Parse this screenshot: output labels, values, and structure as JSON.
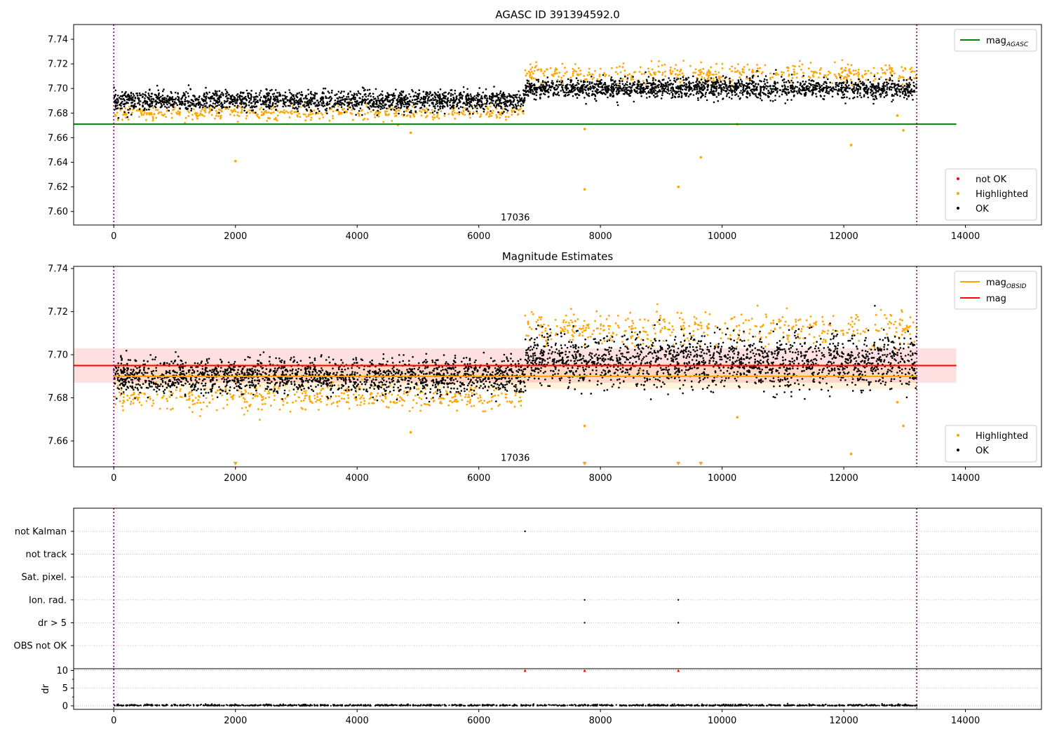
{
  "chart_data": [
    {
      "type": "scatter",
      "title": "AGASC ID 391394592.0",
      "xlim": [
        -660,
        15250
      ],
      "ylim": [
        7.589,
        7.752
      ],
      "x_ticks": [
        0,
        2000,
        4000,
        6000,
        8000,
        10000,
        12000,
        14000
      ],
      "y_ticks": [
        7.6,
        7.62,
        7.64,
        7.66,
        7.68,
        7.7,
        7.72,
        7.74
      ],
      "y_tick_decimals": 2,
      "grid": false,
      "annotation": {
        "text": "17036",
        "x": 6600,
        "y": 7.595
      },
      "vlines": [
        0,
        13200
      ],
      "colors": {
        "OK": "#000000",
        "Highlighted": "#ffa500",
        "not OK": "#ff0000",
        "mag_agasc": "#008000",
        "vline": "#800080"
      },
      "hlines": [
        {
          "label": "mag_AGASC",
          "y": 7.671,
          "x_range": [
            -660,
            13850
          ],
          "color": "#008000"
        }
      ],
      "segments": [
        {
          "x_range": [
            0,
            6760
          ],
          "ok_mean": 7.69,
          "ok_spread": 0.004,
          "hl_mean": 7.68,
          "hl_spread": 0.003
        },
        {
          "x_range": [
            6760,
            13200
          ],
          "ok_mean": 7.7,
          "ok_spread": 0.004,
          "hl_mean": 7.712,
          "hl_spread": 0.004
        }
      ],
      "highlighted_outliers": [
        {
          "x": 2000,
          "y": 7.641
        },
        {
          "x": 4880,
          "y": 7.664
        },
        {
          "x": 7740,
          "y": 7.667
        },
        {
          "x": 7740,
          "y": 7.618
        },
        {
          "x": 9280,
          "y": 7.62
        },
        {
          "x": 9650,
          "y": 7.644
        },
        {
          "x": 10250,
          "y": 7.671
        },
        {
          "x": 12120,
          "y": 7.654
        },
        {
          "x": 12980,
          "y": 7.666
        },
        {
          "x": 12880,
          "y": 7.678
        }
      ],
      "legend_markers": [
        {
          "label": "not OK",
          "color": "#ff0000"
        },
        {
          "label": "Highlighted",
          "color": "#ffa500"
        },
        {
          "label": "OK",
          "color": "#000000"
        }
      ],
      "legend_lines": [
        {
          "label": "mag",
          "sub": "AGASC",
          "color": "#008000"
        }
      ],
      "legend_lines_position": "upper right",
      "legend_markers_position": "lower right"
    },
    {
      "type": "scatter",
      "title": "Magnitude Estimates",
      "xlim": [
        -660,
        15250
      ],
      "ylim": [
        7.648,
        7.741
      ],
      "x_ticks": [
        0,
        2000,
        4000,
        6000,
        8000,
        10000,
        12000,
        14000
      ],
      "y_ticks": [
        7.66,
        7.68,
        7.7,
        7.72,
        7.74
      ],
      "y_tick_decimals": 2,
      "grid": false,
      "annotation": {
        "text": "17036",
        "x": 6600,
        "y": 7.652
      },
      "vlines": [
        0,
        13200
      ],
      "colors": {
        "OK": "#000000",
        "Highlighted": "#ffa500",
        "mag": "#ff0000",
        "mag_obsid": "#ffa500",
        "vline": "#800080"
      },
      "hlines": [
        {
          "label": "mag",
          "y": 7.695,
          "x_range": [
            -660,
            13850
          ],
          "band": [
            7.687,
            7.703
          ],
          "color": "#ff0000"
        },
        {
          "label": "mag_OBSID",
          "y": 7.69,
          "x_range": [
            0,
            13200
          ],
          "band": [
            7.684,
            7.696
          ],
          "color": "#ffa500"
        }
      ],
      "segments": [
        {
          "x_range": [
            0,
            6760
          ],
          "ok_mean": 7.69,
          "ok_spread": 0.004,
          "hl_mean": 7.68,
          "hl_spread": 0.003
        },
        {
          "x_range": [
            6760,
            13200
          ],
          "ok_mean": 7.697,
          "ok_spread": 0.006,
          "hl_mean": 7.712,
          "hl_spread": 0.004
        }
      ],
      "highlighted_outliers": [
        {
          "x": 4880,
          "y": 7.664
        },
        {
          "x": 7740,
          "y": 7.667
        },
        {
          "x": 10250,
          "y": 7.671
        },
        {
          "x": 12120,
          "y": 7.654
        },
        {
          "x": 12980,
          "y": 7.667
        },
        {
          "x": 12880,
          "y": 7.678
        }
      ],
      "offscale_markers": [
        2000,
        7740,
        9280,
        9650
      ],
      "legend_markers": [
        {
          "label": "Highlighted",
          "color": "#ffa500"
        },
        {
          "label": "OK",
          "color": "#000000"
        }
      ],
      "legend_lines": [
        {
          "label": "mag",
          "sub": "OBSID",
          "color": "#ffa500"
        },
        {
          "label": "mag",
          "sub": "",
          "color": "#ff0000"
        }
      ],
      "legend_lines_position": "upper right",
      "legend_markers_position": "lower right"
    },
    {
      "type": "scatter",
      "title": "",
      "xlim": [
        -660,
        15250
      ],
      "categories": [
        "not Kalman",
        "not track",
        "Sat. pixel.",
        "Ion. rad.",
        "dr > 5",
        "OBS not OK"
      ],
      "flag_points": [
        {
          "category": "not Kalman",
          "x": 6760
        },
        {
          "category": "Ion. rad.",
          "x": 7740
        },
        {
          "category": "Ion. rad.",
          "x": 9280
        },
        {
          "category": "dr > 5",
          "x": 7740
        },
        {
          "category": "dr > 5",
          "x": 9280
        }
      ],
      "grid": true,
      "vlines": [
        0,
        13200
      ],
      "colors": {
        "flags": "#000000",
        "vline": "#800080"
      }
    },
    {
      "type": "scatter",
      "title": "",
      "xlim": [
        -660,
        15250
      ],
      "ylim": [
        -1,
        10.5
      ],
      "ylabel": "dr",
      "x_ticks": [
        0,
        2000,
        4000,
        6000,
        8000,
        10000,
        12000,
        14000
      ],
      "y_ticks": [
        0,
        5,
        10
      ],
      "grid": true,
      "dr_baseline": {
        "x_range": [
          0,
          13200
        ],
        "mean": 0.1,
        "spread": 0.15
      },
      "clipped_points": [
        6760,
        7740,
        9280
      ],
      "clip_value": 10,
      "vlines": [
        0,
        13200
      ],
      "colors": {
        "OK": "#000000",
        "clipped": "#ff0000",
        "vline": "#800080"
      }
    }
  ]
}
